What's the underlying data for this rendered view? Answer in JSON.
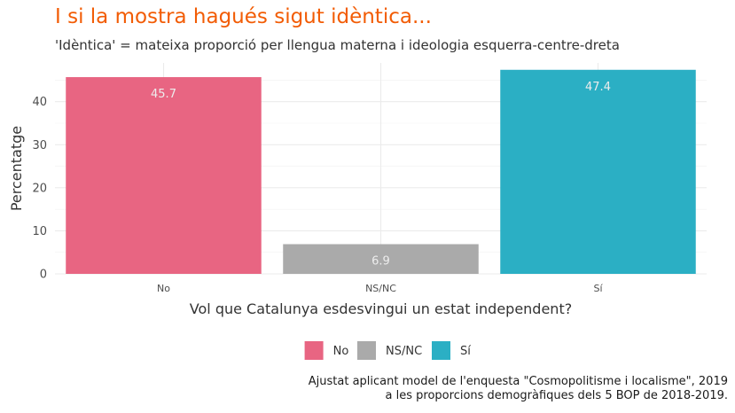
{
  "chart_data": {
    "type": "bar",
    "title": "I si la mostra hagués sigut idèntica...",
    "subtitle": "'Idèntica' = mateixa proporció per llengua materna i ideologia esquerra-centre-dreta",
    "xlabel": "Vol que Catalunya esdesvingui un estat independent?",
    "ylabel": "Percentatge",
    "categories": [
      "No",
      "NS/NC",
      "Sí"
    ],
    "values": [
      45.7,
      6.9,
      47.4
    ],
    "value_labels": [
      "45.7",
      "6.9",
      "47.4"
    ],
    "colors": [
      "#e86582",
      "#aaaaaa",
      "#2bafc4"
    ],
    "ylim": [
      0,
      49
    ],
    "yticks": [
      0,
      10,
      20,
      30,
      40
    ],
    "grid": true,
    "legend": {
      "position": "bottom",
      "entries": [
        "No",
        "NS/NC",
        "Sí"
      ]
    },
    "caption": [
      "Ajustat aplicant model de l'enquesta \"Cosmopolitisme i localisme\", 2019",
      "a les proporcions demogràfiques dels 5 BOP de 2018-2019."
    ]
  }
}
